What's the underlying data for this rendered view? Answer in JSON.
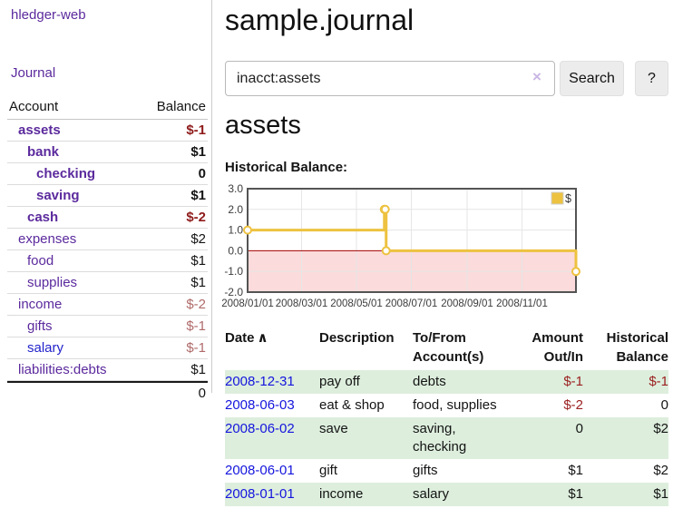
{
  "colors": {
    "accent_purple": "#5b2a9d",
    "link_blue_visited_alt": "#2323cc",
    "table_link_blue": "#1515dd",
    "negative_strong_red": "#8f1b1b",
    "negative_muted_rose": "#b06a6a",
    "table_negative_red": "#9c2121",
    "stripe_green": "#ddeedd",
    "chart_gold": "#edc240",
    "chart_negative_pink": "#fbdbdb",
    "chart_zero_line": "#a40000"
  },
  "sidebar": {
    "brand": "hledger-web",
    "nav": [
      {
        "label": "Journal"
      }
    ],
    "accounts_table": {
      "headers": [
        "Account",
        "Balance"
      ],
      "rows": [
        {
          "account": "assets",
          "depth": 1,
          "bold": true,
          "balance": "$-1",
          "balance_style": "neg-strong"
        },
        {
          "account": "bank",
          "depth": 2,
          "bold": true,
          "balance": "$1",
          "balance_style": "pos"
        },
        {
          "account": "checking",
          "depth": 3,
          "bold": true,
          "balance": "0",
          "balance_style": "pos"
        },
        {
          "account": "saving",
          "depth": 3,
          "bold": true,
          "balance": "$1",
          "balance_style": "pos"
        },
        {
          "account": "cash",
          "depth": 2,
          "bold": true,
          "balance": "$-2",
          "balance_style": "neg-strong"
        },
        {
          "account": "expenses",
          "depth": 1,
          "bold": false,
          "balance": "$2",
          "balance_style": "pos"
        },
        {
          "account": "food",
          "depth": 2,
          "bold": false,
          "balance": "$1",
          "balance_style": "pos"
        },
        {
          "account": "supplies",
          "depth": 2,
          "bold": false,
          "balance": "$1",
          "balance_style": "pos"
        },
        {
          "account": "income",
          "depth": 1,
          "bold": false,
          "balance": "$-2",
          "balance_style": "neg-muted"
        },
        {
          "account": "gifts",
          "depth": 2,
          "bold": false,
          "balance": "$-1",
          "balance_style": "neg-muted"
        },
        {
          "account": "salary",
          "depth": 2,
          "bold": false,
          "link_color": "blue",
          "balance": "$-1",
          "balance_style": "neg-muted"
        },
        {
          "account": "liabilities:debts",
          "depth": 1,
          "bold": false,
          "balance": "$1",
          "balance_style": "pos"
        }
      ],
      "total": "0"
    }
  },
  "header": {
    "title": "sample.journal"
  },
  "search": {
    "value": "inacct:assets",
    "clear_icon": "×",
    "search_label": "Search",
    "help_label": "?"
  },
  "account_page": {
    "heading": "assets",
    "chart_label": "Historical Balance:"
  },
  "chart_data": {
    "type": "line",
    "title": "Historical Balance:",
    "xlabel": "",
    "ylabel": "",
    "ylim": [
      -2,
      3
    ],
    "xlim_days": [
      0,
      365
    ],
    "grid": true,
    "legend_position": "top-right",
    "grid_color": "#e6e6e6",
    "border_color": "#545454",
    "negative_region_color": "#fbdbdb",
    "zero_line_color": "#a40000",
    "y_ticks": [
      {
        "value": 3,
        "label": "3.0"
      },
      {
        "value": 2,
        "label": "2.0"
      },
      {
        "value": 1,
        "label": "1.0"
      },
      {
        "value": 0,
        "label": "0.0"
      },
      {
        "value": -1,
        "label": "-1.0"
      },
      {
        "value": -2,
        "label": "-2.0"
      }
    ],
    "x_ticks": [
      {
        "day": 0,
        "label": "2008/01/01"
      },
      {
        "day": 60,
        "label": "2008/03/01"
      },
      {
        "day": 121,
        "label": "2008/05/01"
      },
      {
        "day": 182,
        "label": "2008/07/01"
      },
      {
        "day": 244,
        "label": "2008/09/01"
      },
      {
        "day": 305,
        "label": "2008/11/01"
      }
    ],
    "series": [
      {
        "name": "$",
        "color": "#edc240",
        "step": true,
        "points": [
          {
            "date": "2008-01-01",
            "day": 0,
            "value": 1
          },
          {
            "date": "2008-06-01",
            "day": 152,
            "value": 2
          },
          {
            "date": "2008-06-02",
            "day": 153,
            "value": 2
          },
          {
            "date": "2008-06-03",
            "day": 154,
            "value": 0
          },
          {
            "date": "2008-12-31",
            "day": 365,
            "value": -1
          }
        ]
      }
    ]
  },
  "register_table": {
    "headers": {
      "date": "Date",
      "sort_icon": "∧",
      "description": "Description",
      "account": "To/From Account(s)",
      "amount": "Amount Out/In",
      "balance": "Historical Balance"
    },
    "rows": [
      {
        "date": "2008-12-31",
        "description": "pay off",
        "accounts": "debts",
        "amount": "$-1",
        "amount_neg": true,
        "balance": "$-1",
        "balance_neg": true
      },
      {
        "date": "2008-06-03",
        "description": "eat & shop",
        "accounts": "food, supplies",
        "amount": "$-2",
        "amount_neg": true,
        "balance": "0",
        "balance_neg": false
      },
      {
        "date": "2008-06-02",
        "description": "save",
        "accounts": "saving, checking",
        "amount": "0",
        "amount_neg": false,
        "balance": "$2",
        "balance_neg": false
      },
      {
        "date": "2008-06-01",
        "description": "gift",
        "accounts": "gifts",
        "amount": "$1",
        "amount_neg": false,
        "balance": "$2",
        "balance_neg": false
      },
      {
        "date": "2008-01-01",
        "description": "income",
        "accounts": "salary",
        "amount": "$1",
        "amount_neg": false,
        "balance": "$1",
        "balance_neg": false
      }
    ]
  }
}
